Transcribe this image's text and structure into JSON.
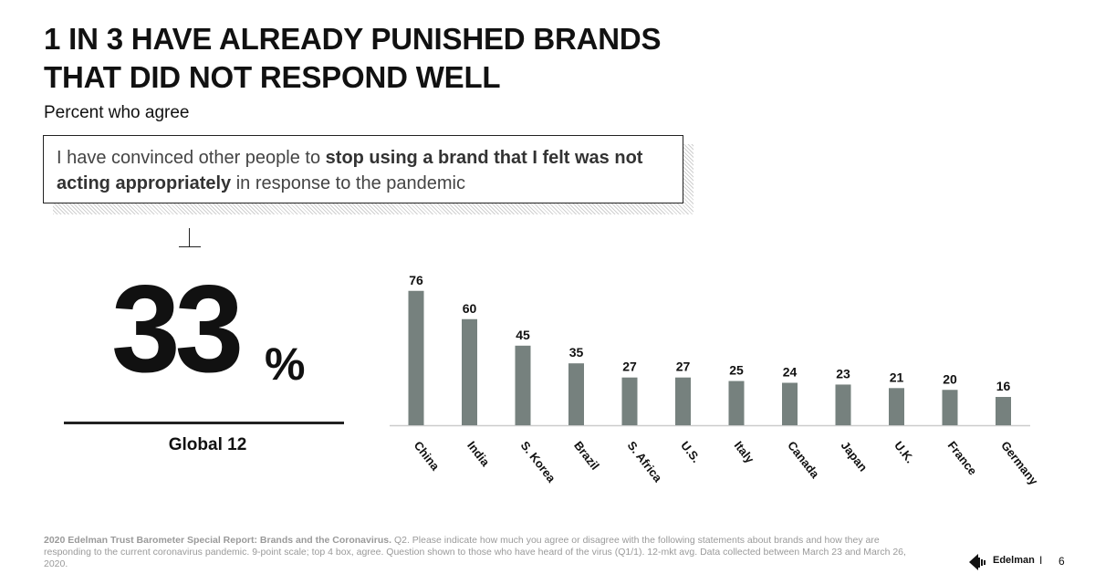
{
  "title": {
    "line1": "1 IN 3 HAVE ALREADY PUNISHED BRANDS",
    "line2": "THAT DID NOT RESPOND WELL"
  },
  "subtitle": "Percent who agree",
  "statement": {
    "part1": "I have convinced other people to ",
    "bold": "stop using a brand that I felt was not acting appropriately",
    "part2": " in response to the pandemic"
  },
  "global": {
    "value": "33",
    "unit": "%",
    "label": "Global 12"
  },
  "chart_data": {
    "type": "bar",
    "categories": [
      "China",
      "India",
      "S. Korea",
      "Brazil",
      "S. Africa",
      "U.S.",
      "Italy",
      "Canada",
      "Japan",
      "U.K.",
      "France",
      "Germany"
    ],
    "values": [
      76,
      60,
      45,
      35,
      27,
      27,
      25,
      24,
      23,
      21,
      20,
      16
    ],
    "title": "",
    "xlabel": "",
    "ylabel": "",
    "ylim": [
      0,
      80
    ],
    "grid": false,
    "legend": "none",
    "bar_color": "#76817e",
    "axis_color": "#cccccc"
  },
  "footnote": {
    "bold": "2020 Edelman Trust Barometer Special Report: Brands and the Coronavirus.",
    "text": " Q2. Please indicate how much you agree or disagree with the following statements about brands and how they are responding to the current coronavirus pandemic. 9-point scale; top 4 box, agree. Question shown to those who have heard of the virus (Q1/1). 12-mkt avg. Data collected between March 23 and March 26, 2020."
  },
  "brand": {
    "name": "Edelman",
    "separator": "I",
    "page": "6"
  }
}
